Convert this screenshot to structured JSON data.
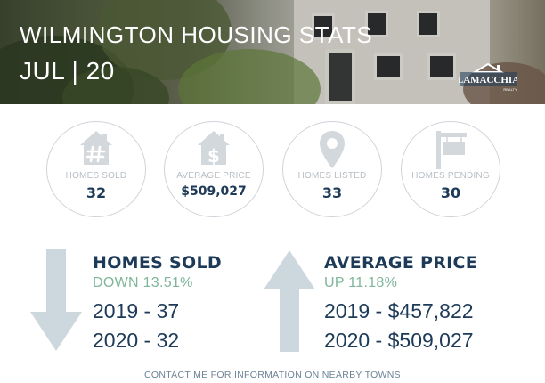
{
  "header": {
    "title": "WILMINGTON HOUSING STATS",
    "subtitle": "JUL | 20",
    "logo_text": "LAMACCHIA",
    "logo_subtext": "REALTY"
  },
  "stats": [
    {
      "label": "HOMES SOLD",
      "value": "32",
      "icon": "house-hash-icon"
    },
    {
      "label": "AVERAGE PRICE",
      "value": "$509,027",
      "icon": "house-dollar-icon"
    },
    {
      "label": "HOMES LISTED",
      "value": "33",
      "icon": "map-pin-icon"
    },
    {
      "label": "HOMES PENDING",
      "value": "30",
      "icon": "sign-post-icon"
    }
  ],
  "homes_sold": {
    "heading": "HOMES SOLD",
    "change": "DOWN 13.51%",
    "line_2019": "2019 - 37",
    "line_2020": "2020 - 32"
  },
  "average_price": {
    "heading": "AVERAGE PRICE",
    "change": "UP 11.18%",
    "line_2019": "2019 - $457,822",
    "line_2020": "2020 - $509,027"
  },
  "footer": {
    "text": "CONTACT ME FOR INFORMATION ON NEARBY TOWNS"
  },
  "colors": {
    "navy": "#1d3a58",
    "green": "#7fb59a",
    "circle_border": "#cfd4d9",
    "icon_gray": "#d3d8dc"
  }
}
